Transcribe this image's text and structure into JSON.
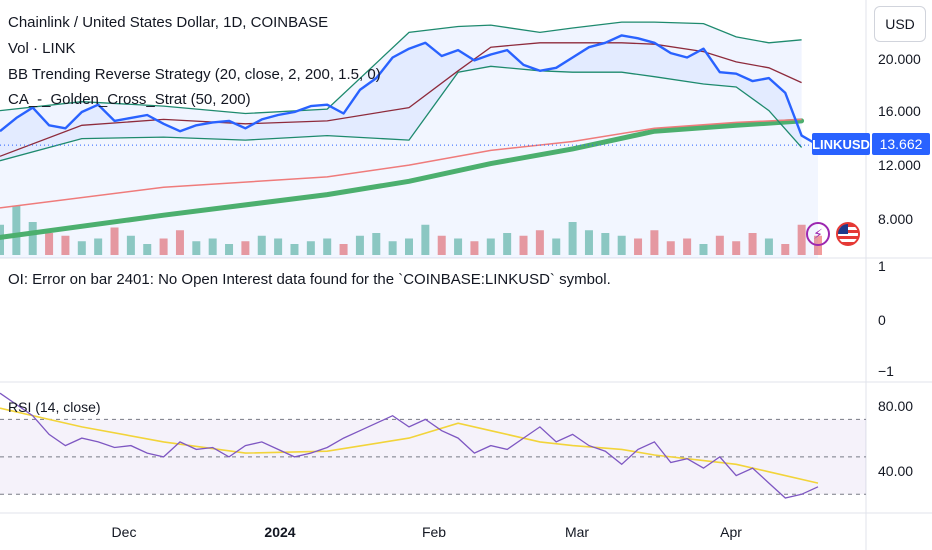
{
  "header": {
    "title": "Chainlink / United States Dollar, 1D, COINBASE",
    "volume_label": "Vol · LINK",
    "bb_strategy_label": "BB Trending Reverse Strategy (20, close, 2, 200, 1.5, 0)",
    "ca_strategy_label": "CA_-_Golden_Cross_Strat (50, 200)",
    "currency_button": "USD"
  },
  "oi_pane": {
    "error_text": "OI: Error on bar 2401: No Open Interest data found for the `COINBASE:LINKUSD` symbol.",
    "y_ticks": [
      "1",
      "0",
      "−1"
    ]
  },
  "rsi_pane": {
    "label": "RSI (14, close)",
    "y_ticks": [
      "80.00",
      "40.00"
    ]
  },
  "price_axis": {
    "y_ticks": [
      "20.000",
      "16.000",
      "12.000",
      "8.000"
    ],
    "symbol_tag": "LINKUSD",
    "last_price": "13.662"
  },
  "time_axis": {
    "ticks": [
      {
        "label": "Dec",
        "bold": false
      },
      {
        "label": "2024",
        "bold": true
      },
      {
        "label": "Feb",
        "bold": false
      },
      {
        "label": "Mar",
        "bold": false
      },
      {
        "label": "Apr",
        "bold": false
      }
    ]
  },
  "colors": {
    "price_line": "#2962ff",
    "bb_band": "#1e8a6e",
    "bb_basis": "#8e2b3c",
    "sma_200": "#ef7b7b",
    "golden_cross_ma": "#4caf6e",
    "rsi_line": "#7e57c2",
    "rsi_ma": "#f2d43a",
    "vol_up": "#7fc6b4",
    "vol_down": "#f08b8b"
  },
  "icons": [
    "flash-icon",
    "us-flag-icon"
  ],
  "chart_data": [
    {
      "type": "line",
      "name": "price",
      "ylim": [
        6.0,
        23.5
      ],
      "x_range": [
        0,
        100
      ],
      "series": [
        {
          "name": "LINKUSD close",
          "x": [
            0,
            2,
            4,
            6,
            8,
            10,
            12,
            14,
            16,
            18,
            20,
            22,
            24,
            26,
            28,
            30,
            32,
            34,
            36,
            38,
            40,
            42,
            44,
            46,
            48,
            50,
            52,
            54,
            56,
            58,
            60,
            62,
            64,
            66,
            68,
            70,
            72,
            74,
            76,
            78,
            80,
            82,
            84,
            86,
            88,
            90,
            92,
            94,
            96,
            98,
            100
          ],
          "values": [
            14.6,
            15.5,
            16.2,
            15.0,
            14.8,
            15.9,
            16.4,
            15.3,
            15.5,
            15.7,
            15.1,
            14.6,
            15.0,
            15.2,
            15.3,
            14.8,
            15.4,
            15.7,
            15.9,
            16.3,
            16.4,
            15.8,
            17.4,
            18.2,
            19.6,
            20.2,
            20.6,
            19.7,
            20.1,
            19.4,
            19.8,
            20.1,
            19.1,
            18.7,
            18.9,
            19.6,
            20.3,
            20.6,
            21.1,
            20.9,
            20.6,
            19.9,
            19.6,
            20.2,
            18.6,
            18.5,
            18.0,
            18.2,
            17.2,
            14.3,
            13.66
          ]
        },
        {
          "name": "BB upper",
          "x": [
            0,
            10,
            20,
            30,
            40,
            50,
            56,
            60,
            66,
            70,
            76,
            80,
            86,
            90,
            94,
            98
          ],
          "values": [
            16.0,
            16.6,
            16.3,
            15.8,
            16.1,
            21.3,
            21.7,
            21.8,
            21.3,
            21.6,
            22.0,
            22.0,
            21.9,
            21.0,
            20.6,
            20.8
          ]
        },
        {
          "name": "BB lower",
          "x": [
            0,
            10,
            20,
            30,
            40,
            50,
            56,
            60,
            66,
            70,
            76,
            80,
            86,
            90,
            94,
            98
          ],
          "values": [
            12.6,
            14.1,
            14.2,
            14.0,
            14.3,
            14.0,
            18.6,
            19.0,
            18.7,
            18.6,
            18.6,
            18.3,
            17.8,
            17.6,
            16.0,
            13.5
          ]
        },
        {
          "name": "BB basis",
          "x": [
            0,
            10,
            20,
            30,
            40,
            50,
            56,
            60,
            66,
            70,
            76,
            80,
            86,
            90,
            94,
            98
          ],
          "values": [
            12.9,
            15.0,
            15.4,
            15.1,
            15.3,
            16.2,
            18.7,
            20.3,
            20.6,
            20.6,
            20.6,
            20.5,
            20.0,
            19.3,
            18.9,
            17.9
          ]
        },
        {
          "name": "SMA 200",
          "x": [
            0,
            20,
            40,
            50,
            60,
            70,
            80,
            90,
            98
          ],
          "values": [
            9.4,
            10.8,
            11.5,
            12.3,
            13.3,
            13.9,
            14.8,
            15.2,
            15.4
          ]
        },
        {
          "name": "Golden Cross MA",
          "x": [
            0,
            20,
            40,
            50,
            60,
            70,
            80,
            90,
            98
          ],
          "values": [
            7.4,
            8.9,
            10.3,
            11.2,
            12.4,
            13.4,
            14.6,
            15.0,
            15.3
          ]
        }
      ],
      "volume": [
        0.55,
        0.9,
        0.6,
        0.4,
        0.35,
        0.25,
        0.3,
        0.5,
        0.35,
        0.2,
        0.3,
        0.45,
        0.25,
        0.3,
        0.2,
        0.25,
        0.35,
        0.3,
        0.2,
        0.25,
        0.3,
        0.2,
        0.35,
        0.4,
        0.25,
        0.3,
        0.55,
        0.35,
        0.3,
        0.25,
        0.3,
        0.4,
        0.35,
        0.45,
        0.3,
        0.6,
        0.45,
        0.4,
        0.35,
        0.3,
        0.45,
        0.25,
        0.3,
        0.2,
        0.35,
        0.25,
        0.4,
        0.3,
        0.2,
        0.55,
        0.35
      ]
    },
    {
      "type": "line",
      "name": "rsi",
      "title": "RSI (14, close)",
      "ylim": [
        20,
        90
      ],
      "levels": [
        70,
        50,
        30
      ],
      "series": [
        {
          "name": "RSI",
          "x": [
            0,
            2,
            4,
            6,
            8,
            10,
            12,
            14,
            16,
            18,
            20,
            22,
            24,
            26,
            28,
            30,
            32,
            34,
            36,
            38,
            40,
            42,
            44,
            46,
            48,
            50,
            52,
            54,
            56,
            58,
            60,
            62,
            64,
            66,
            68,
            70,
            72,
            74,
            76,
            78,
            80,
            82,
            84,
            86,
            88,
            90,
            92,
            94,
            96,
            98,
            100
          ],
          "values": [
            84,
            78,
            72,
            62,
            56,
            60,
            58,
            55,
            56,
            52,
            50,
            58,
            54,
            55,
            50,
            56,
            58,
            54,
            50,
            52,
            55,
            60,
            64,
            68,
            72,
            66,
            70,
            64,
            60,
            52,
            56,
            54,
            60,
            66,
            58,
            62,
            56,
            53,
            46,
            54,
            58,
            47,
            49,
            44,
            50,
            40,
            44,
            36,
            28,
            30,
            34
          ]
        },
        {
          "name": "RSI MA",
          "x": [
            0,
            10,
            20,
            30,
            40,
            50,
            56,
            60,
            66,
            70,
            76,
            80,
            86,
            90,
            94,
            100
          ],
          "values": [
            76,
            66,
            58,
            52,
            53,
            60,
            68,
            64,
            58,
            56,
            54,
            51,
            48,
            46,
            42,
            36
          ]
        }
      ]
    }
  ]
}
